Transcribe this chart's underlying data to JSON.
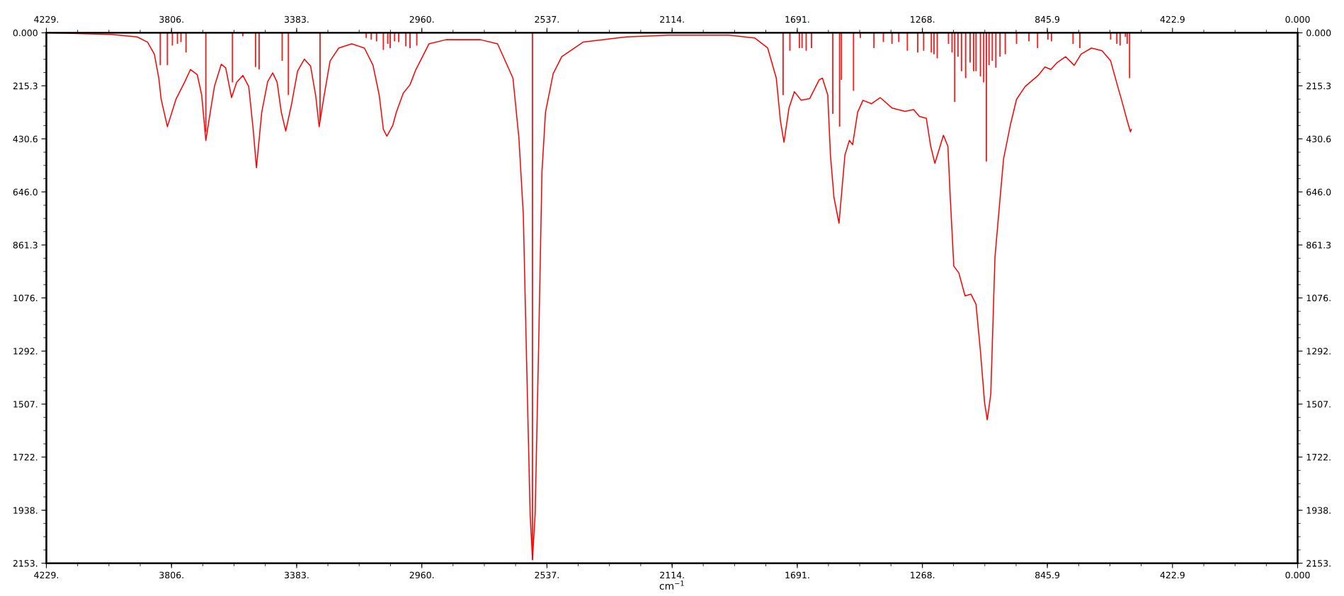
{
  "chart_data": {
    "type": "line",
    "xlabel": "cm$^{−1}$",
    "grid": false,
    "legend": false,
    "xlim": [
      4229,
      0
    ],
    "x2lim": [
      4229,
      0
    ],
    "ylim": [
      2153,
      0
    ],
    "y2lim": [
      2153,
      0
    ],
    "xticks": [
      {
        "value": 4229,
        "label": "4229."
      },
      {
        "value": 3806,
        "label": "3806."
      },
      {
        "value": 3383,
        "label": "3383."
      },
      {
        "value": 2960,
        "label": "2960."
      },
      {
        "value": 2537,
        "label": "2537."
      },
      {
        "value": 2114,
        "label": "2114."
      },
      {
        "value": 1691,
        "label": "1691."
      },
      {
        "value": 1268,
        "label": "1268."
      },
      845.9,
      422.9,
      {
        "value": 0,
        "label": "0.000"
      }
    ],
    "x2ticks": [
      {
        "value": 4229,
        "label": "4229."
      },
      {
        "value": 3806,
        "label": "3806."
      },
      {
        "value": 3383,
        "label": "3383."
      },
      {
        "value": 2960,
        "label": "2960."
      },
      {
        "value": 2537,
        "label": "2537."
      },
      {
        "value": 2114,
        "label": "2114."
      },
      {
        "value": 1691,
        "label": "1691."
      },
      {
        "value": 1268,
        "label": "1268."
      },
      845.9,
      422.9,
      {
        "value": 0,
        "label": "0.000"
      }
    ],
    "yticks": [
      {
        "value": 0,
        "label": "0.000"
      },
      215.3,
      430.6,
      {
        "value": 646,
        "label": "646.0"
      },
      861.3,
      {
        "value": 1076,
        "label": "1076."
      },
      {
        "value": 1292,
        "label": "1292."
      },
      {
        "value": 1507,
        "label": "1507."
      },
      {
        "value": 1722,
        "label": "1722."
      },
      {
        "value": 1938,
        "label": "1938."
      },
      {
        "value": 2153,
        "label": "2153."
      }
    ],
    "y2ticks": [
      {
        "value": 0,
        "label": "0.000"
      },
      215.3,
      430.6,
      {
        "value": 646,
        "label": "646.0"
      },
      861.3,
      {
        "value": 1076,
        "label": "1076."
      },
      {
        "value": 1292,
        "label": "1292."
      },
      {
        "value": 1507,
        "label": "1507."
      },
      {
        "value": 1722,
        "label": "1722."
      },
      {
        "value": 1938,
        "label": "1938."
      },
      {
        "value": 2153,
        "label": "2153."
      }
    ],
    "series": [
      {
        "color": "#ff0000",
        "x": [
          4229,
          4009,
          3922,
          3887,
          3864,
          3849,
          3841,
          3820,
          3791,
          3762,
          3742,
          3719,
          3704,
          3690,
          3675,
          3661,
          3638,
          3623,
          3603,
          3586,
          3565,
          3545,
          3530,
          3519,
          3501,
          3481,
          3464,
          3449,
          3435,
          3420,
          3400,
          3380,
          3357,
          3336,
          3319,
          3307,
          3290,
          3270,
          3241,
          3197,
          3154,
          3125,
          3104,
          3090,
          3078,
          3058,
          3046,
          3023,
          3000,
          2980,
          2965,
          2936,
          2878,
          2762,
          2704,
          2652,
          2632,
          2617,
          2606,
          2594,
          2586,
          2577,
          2565,
          2554,
          2542,
          2516,
          2487,
          2415,
          2270,
          2125,
          1922,
          1835,
          1791,
          1762,
          1748,
          1736,
          1719,
          1701,
          1678,
          1649,
          1617,
          1606,
          1588,
          1579,
          1567,
          1550,
          1530,
          1515,
          1504,
          1487,
          1469,
          1440,
          1411,
          1371,
          1327,
          1298,
          1278,
          1255,
          1240,
          1226,
          1197,
          1182,
          1174,
          1162,
          1145,
          1124,
          1104,
          1087,
          1072,
          1058,
          1049,
          1037,
          1023,
          1008,
          994,
          971,
          950,
          921,
          877,
          854,
          834,
          813,
          784,
          755,
          732,
          697,
          661,
          632,
          608,
          594,
          576,
          565,
          562
        ],
        "values": [
          0,
          7,
          17,
          38,
          87,
          184,
          270,
          381,
          270,
          201,
          149,
          170,
          253,
          437,
          322,
          218,
          128,
          142,
          263,
          201,
          173,
          218,
          392,
          548,
          322,
          198,
          163,
          201,
          322,
          399,
          288,
          156,
          107,
          135,
          253,
          381,
          253,
          114,
          62,
          45,
          62,
          132,
          253,
          392,
          420,
          375,
          322,
          246,
          211,
          149,
          114,
          45,
          28,
          28,
          45,
          184,
          426,
          738,
          1328,
          1952,
          2139,
          1952,
          1259,
          565,
          322,
          166,
          97,
          38,
          17,
          10,
          10,
          21,
          62,
          184,
          357,
          444,
          305,
          239,
          274,
          267,
          191,
          184,
          253,
          496,
          669,
          773,
          496,
          437,
          454,
          322,
          274,
          288,
          263,
          305,
          319,
          312,
          340,
          347,
          461,
          530,
          416,
          461,
          669,
          947,
          975,
          1068,
          1061,
          1102,
          1293,
          1501,
          1571,
          1466,
          912,
          704,
          513,
          375,
          270,
          218,
          173,
          139,
          149,
          121,
          97,
          132,
          87,
          62,
          73,
          114,
          218,
          277,
          357,
          402,
          392
        ]
      },
      {
        "type": "bar",
        "color": "#ee2222",
        "x": [
          3844,
          3820,
          3803,
          3786,
          3774,
          3757,
          3690,
          3600,
          3565,
          3522,
          3510,
          3432,
          3411,
          3304,
          3148,
          3131,
          3113,
          3090,
          3075,
          3067,
          3052,
          3038,
          3014,
          3000,
          2977,
          2586,
          1739,
          1716,
          1684,
          1675,
          1661,
          1643,
          1571,
          1548,
          1542,
          1501,
          1478,
          1432,
          1400,
          1371,
          1348,
          1319,
          1284,
          1264,
          1238,
          1229,
          1218,
          1180,
          1168,
          1159,
          1148,
          1136,
          1122,
          1107,
          1095,
          1087,
          1072,
          1061,
          1052,
          1043,
          1032,
          1020,
          1006,
          988,
          950,
          908,
          879,
          844,
          832,
          759,
          736,
          632,
          611,
          600,
          582,
          576,
          568
        ],
        "values": [
          132,
          132,
          52,
          45,
          38,
          80,
          402,
          201,
          14,
          139,
          149,
          114,
          253,
          357,
          21,
          28,
          35,
          69,
          45,
          62,
          35,
          38,
          55,
          62,
          52,
          2139,
          253,
          73,
          62,
          62,
          73,
          62,
          329,
          381,
          191,
          236,
          21,
          62,
          38,
          45,
          38,
          73,
          80,
          73,
          80,
          87,
          104,
          45,
          80,
          281,
          97,
          156,
          184,
          121,
          156,
          156,
          177,
          201,
          523,
          132,
          114,
          142,
          97,
          87,
          45,
          35,
          62,
          28,
          35,
          45,
          62,
          28,
          45,
          52,
          17,
          45,
          184
        ]
      }
    ]
  }
}
